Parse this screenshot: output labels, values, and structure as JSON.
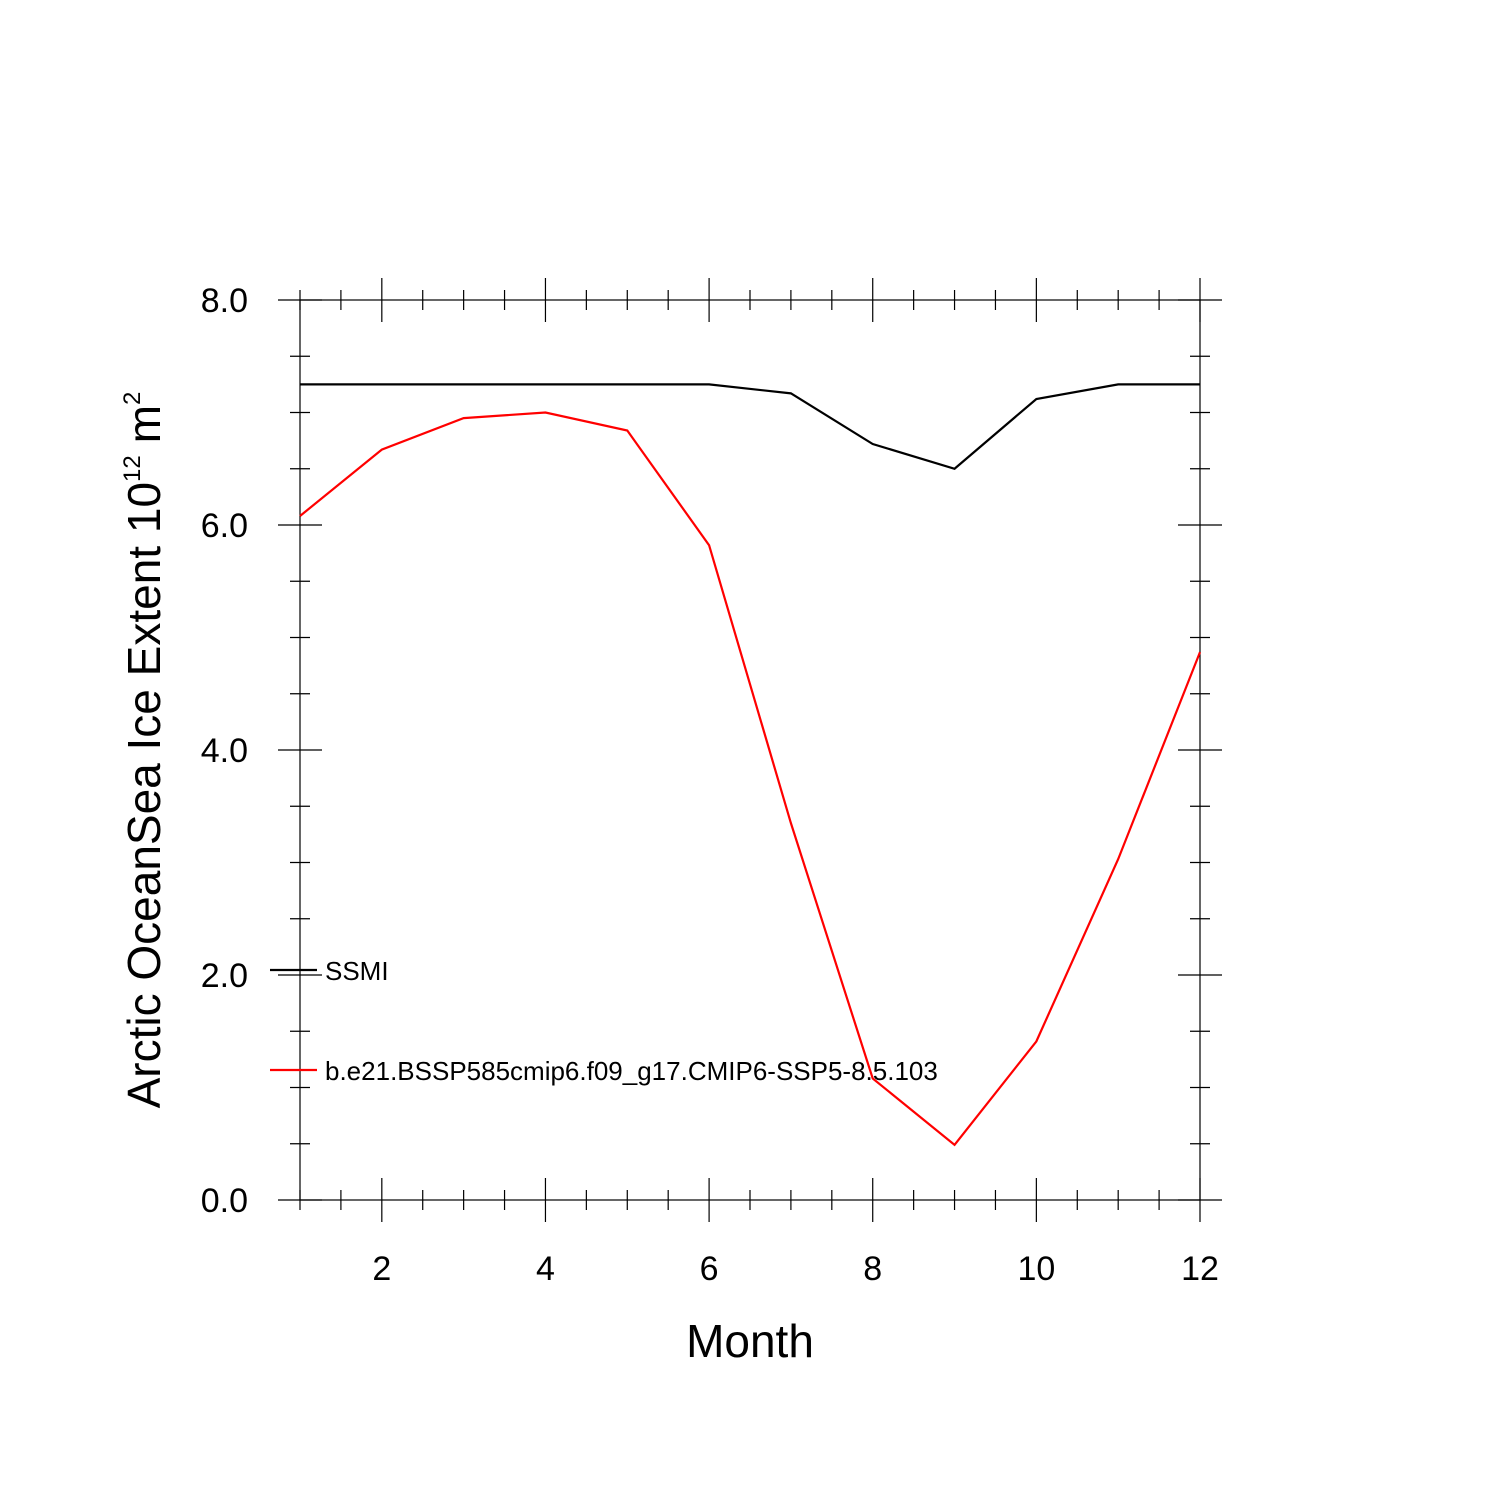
{
  "chart_data": {
    "type": "line",
    "xlabel": "Month",
    "ylabel_main": "Arctic OceanSea Ice Extent 10",
    "ylabel_exp": "12",
    "ylabel_unit": "m",
    "ylabel_unit_exp": "2",
    "xlim": [
      1,
      12
    ],
    "ylim": [
      0,
      8
    ],
    "x_major_ticks": [
      2,
      4,
      6,
      8,
      10,
      12
    ],
    "x_tick_labels": [
      "2",
      "4",
      "6",
      "8",
      "10",
      "12"
    ],
    "y_major_ticks": [
      0,
      2,
      4,
      6,
      8
    ],
    "y_tick_labels": [
      "0.0",
      "2.0",
      "4.0",
      "6.0",
      "8.0"
    ],
    "grid": false,
    "legend_position": "bottom-left",
    "x": [
      1,
      2,
      3,
      4,
      5,
      6,
      7,
      8,
      9,
      10,
      11,
      12
    ],
    "series": [
      {
        "name": "SSMI",
        "color": "#000000",
        "values": [
          7.25,
          7.25,
          7.25,
          7.25,
          7.25,
          7.25,
          7.17,
          6.72,
          6.5,
          7.12,
          7.25,
          7.25
        ]
      },
      {
        "name": "b.e21.BSSP585cmip6.f09_g17.CMIP6-SSP5-8.5.103",
        "color": "#ff0000",
        "values": [
          6.08,
          6.67,
          6.95,
          7.0,
          6.84,
          5.82,
          3.35,
          1.08,
          0.49,
          1.41,
          3.03,
          4.87
        ]
      }
    ]
  }
}
